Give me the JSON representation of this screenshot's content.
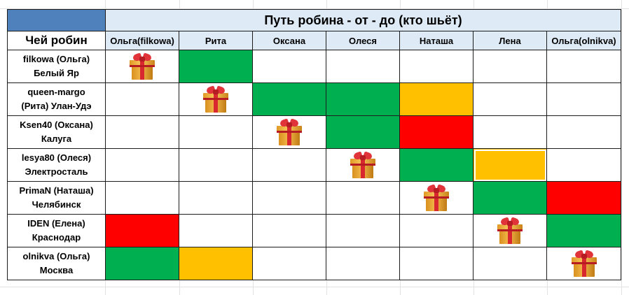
{
  "sheet": {
    "title": "Путь робина - от - до (кто шьёт)",
    "corner_label": "Чей робин",
    "columns": [
      "Ольга(filkowa)",
      "Рита",
      "Оксана",
      "Олеся",
      "Наташа",
      "Лена",
      "Ольга(olnikva)"
    ],
    "rows": [
      {
        "line1": "filkowa (Ольга)",
        "line2": "Белый Яр",
        "cells": [
          "gift",
          "green",
          "",
          "",
          "",
          "",
          ""
        ]
      },
      {
        "line1": "queen-margo",
        "line2": "(Рита) Улан-Удэ",
        "cells": [
          "",
          "gift",
          "green",
          "green",
          "yellow",
          "",
          ""
        ]
      },
      {
        "line1": "Ksen40 (Оксана)",
        "line2": "Калуга",
        "cells": [
          "",
          "",
          "gift",
          "green",
          "red",
          "",
          ""
        ]
      },
      {
        "line1": "lesya80 (Олеся)",
        "line2": "Электросталь",
        "cells": [
          "",
          "",
          "",
          "gift",
          "green",
          "yellow",
          ""
        ]
      },
      {
        "line1": "PrimaN (Наташа)",
        "line2": "Челябинск",
        "cells": [
          "",
          "",
          "",
          "",
          "gift",
          "green",
          "red"
        ]
      },
      {
        "line1": "IDEN (Елена)",
        "line2": "Краснодар",
        "cells": [
          "red",
          "",
          "",
          "",
          "",
          "gift",
          "green"
        ]
      },
      {
        "line1": "olnikva (Ольга)",
        "line2": "Москва",
        "cells": [
          "green",
          "yellow",
          "",
          "",
          "",
          "",
          "gift"
        ]
      }
    ],
    "selected_cell": {
      "row": 3,
      "col": 5
    }
  },
  "colors": {
    "green": "#00b050",
    "yellow": "#ffc000",
    "red": "#ff0000",
    "header_fill": "#deebf7",
    "corner_fill": "#4f81bd"
  },
  "icons": {
    "gift": "gift-icon"
  }
}
